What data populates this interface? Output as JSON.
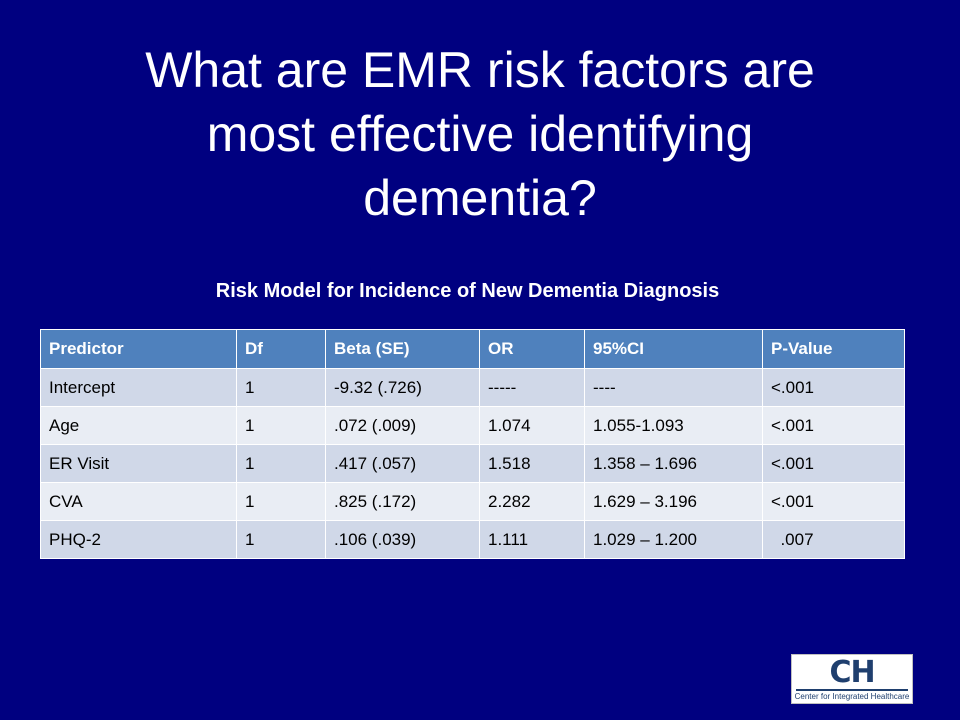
{
  "slide": {
    "title_lines": [
      "What are EMR risk factors are",
      "most effective identifying",
      "dementia?"
    ]
  },
  "table": {
    "caption": "Risk Model for Incidence of New Dementia Diagnosis",
    "headers": [
      "Predictor",
      "Df",
      "Beta (SE)",
      "OR",
      "95%CI",
      "P-Value"
    ],
    "rows": [
      [
        "Intercept",
        "1",
        "-9.32 (.726)",
        "-----",
        "----",
        "<.001"
      ],
      [
        "Age",
        "1",
        ".072 (.009)",
        "1.074",
        "1.055-1.093",
        "<.001"
      ],
      [
        "ER Visit",
        "1",
        ".417 (.057)",
        "1.518",
        "1.358 – 1.696",
        "<.001"
      ],
      [
        "CVA",
        "1",
        ".825 (.172)",
        "2.282",
        "1.629 – 3.196",
        "<.001"
      ],
      [
        "PHQ-2",
        "1",
        ".106 (.039)",
        "1.111",
        "1.029 – 1.200",
        "  .007"
      ]
    ]
  },
  "logo": {
    "mark": "CH",
    "text": "Center for Integrated Healthcare"
  },
  "colors": {
    "background": "#000080",
    "header_fill": "#4f81bd",
    "row_fill_odd": "#d0d8e8",
    "row_fill_even": "#e9edf4"
  }
}
